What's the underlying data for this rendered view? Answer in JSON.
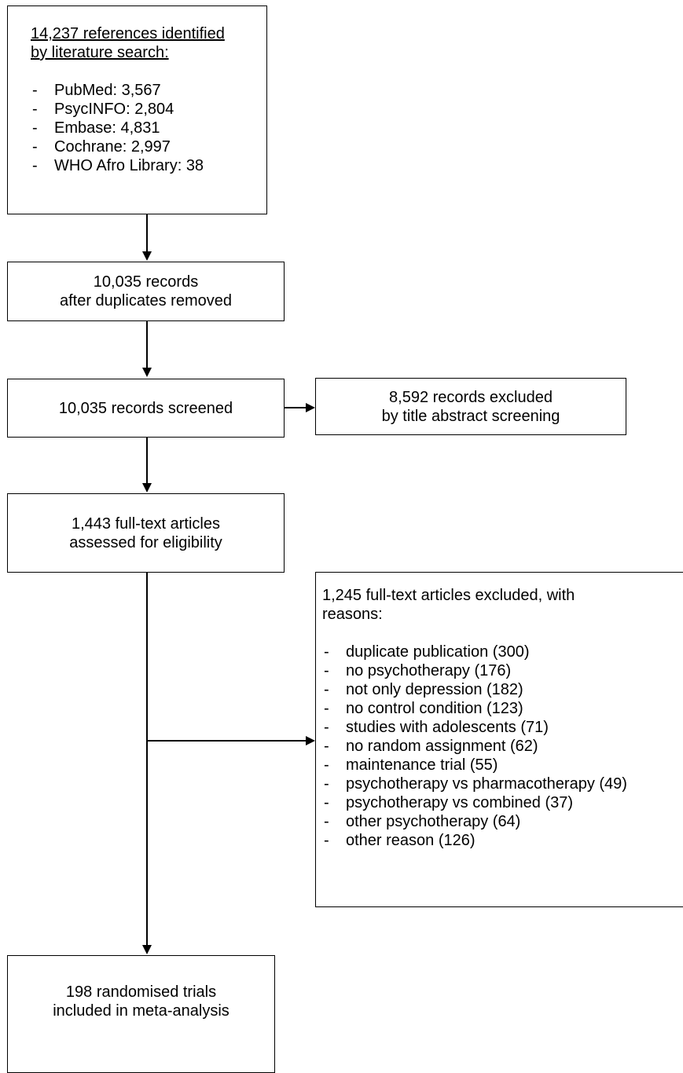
{
  "identification": {
    "heading_line1": "14,237 references identified",
    "heading_line2": "by literature search:",
    "sources": [
      "PubMed: 3,567",
      "PsycINFO: 2,804",
      "Embase: 4,831",
      "Cochrane: 2,997",
      "WHO Afro Library: 38"
    ]
  },
  "deduplicated": {
    "line1": "10,035 records",
    "line2": "after duplicates removed"
  },
  "screened": {
    "text": "10,035 records screened"
  },
  "screen_excluded": {
    "line1": "8,592 records excluded",
    "line2": "by title abstract screening"
  },
  "eligibility": {
    "line1": "1,443 full-text articles",
    "line2": "assessed for eligibility"
  },
  "fulltext_excluded": {
    "heading_line1": "1,245 full-text articles excluded, with",
    "heading_line2": "reasons:",
    "reasons": [
      "duplicate publication (300)",
      "no psychotherapy (176)",
      "not only depression (182)",
      "no control condition (123)",
      "studies with adolescents (71)",
      "no random assignment (62)",
      "maintenance trial (55)",
      "psychotherapy vs pharmacotherapy (49)",
      "psychotherapy vs combined (37)",
      "other psychotherapy (64)",
      "other reason (126)"
    ]
  },
  "included": {
    "line1": "198 randomised trials",
    "line2": "included in meta-analysis"
  }
}
